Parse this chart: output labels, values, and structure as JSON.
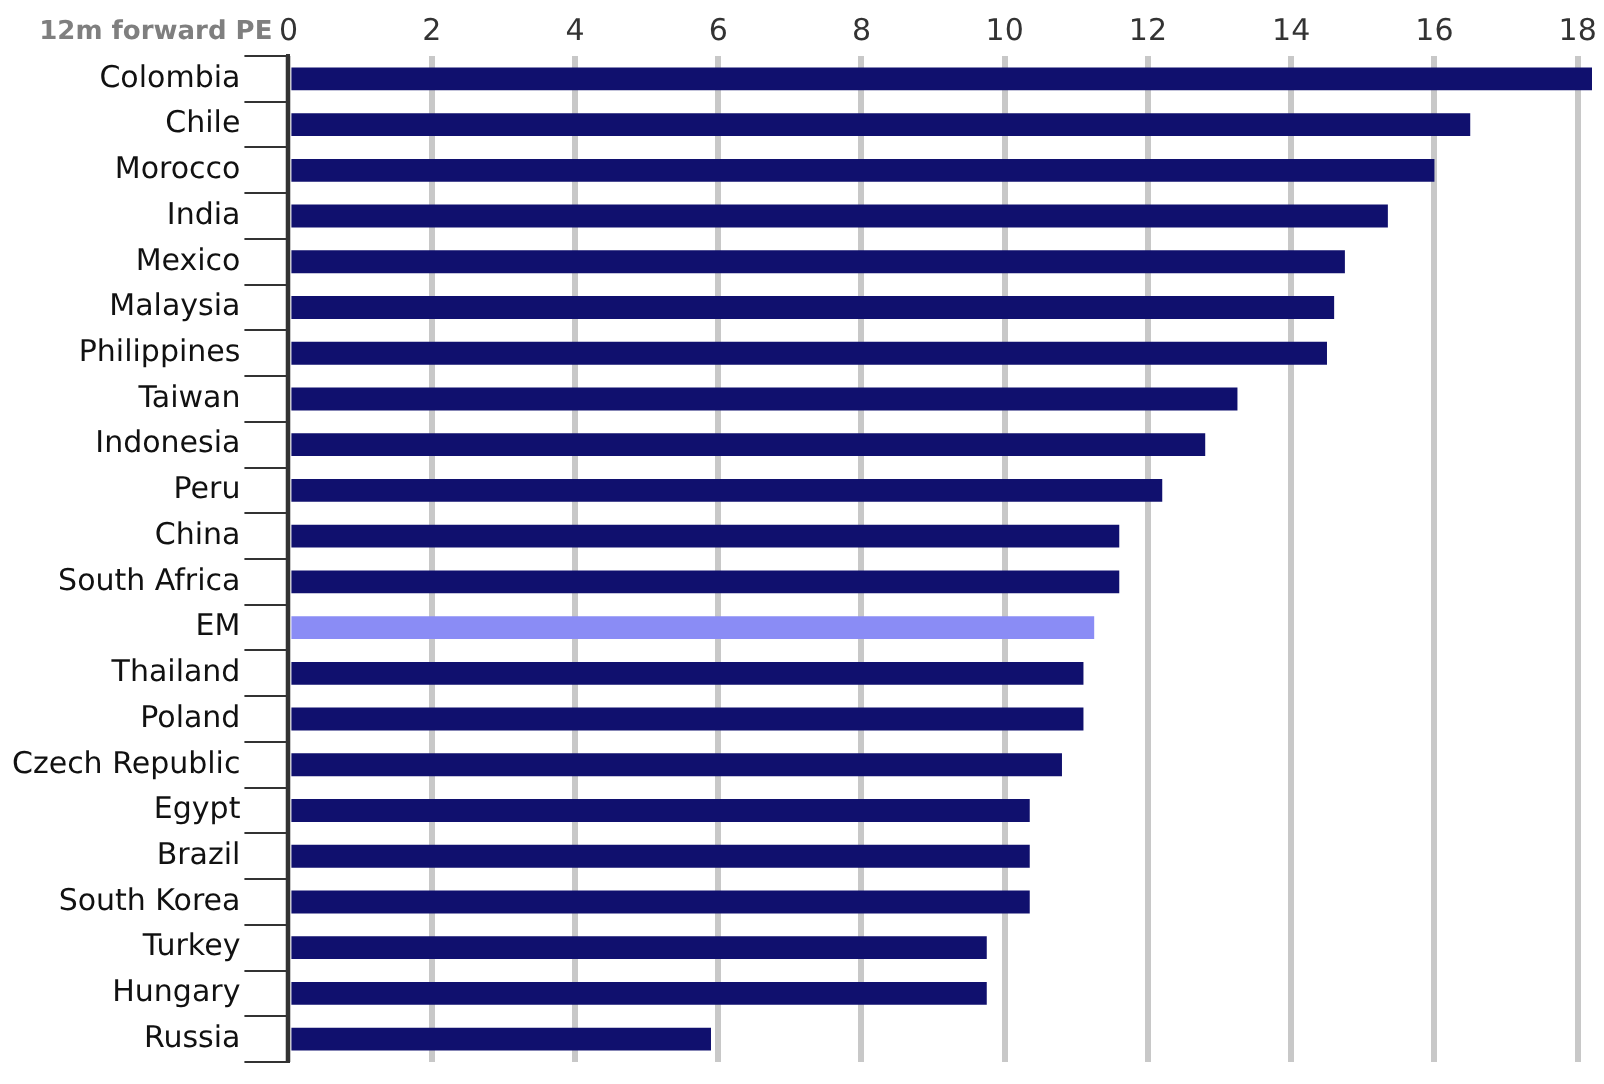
{
  "chart_data": {
    "type": "bar",
    "orientation": "horizontal",
    "xlabel": "12m forward PE",
    "categories": [
      "Colombia",
      "Chile",
      "Morocco",
      "India",
      "Mexico",
      "Malaysia",
      "Philippines",
      "Taiwan",
      "Indonesia",
      "Peru",
      "China",
      "South Africa",
      "EM",
      "Thailand",
      "Poland",
      "Czech Republic",
      "Egypt",
      "Brazil",
      "South Korea",
      "Turkey",
      "Hungary",
      "Russia"
    ],
    "values": [
      18.2,
      16.5,
      16.0,
      15.35,
      14.75,
      14.6,
      14.5,
      13.25,
      12.8,
      12.2,
      11.6,
      11.6,
      11.25,
      11.1,
      11.1,
      10.8,
      10.35,
      10.35,
      10.35,
      9.75,
      9.75,
      5.9
    ],
    "colors": [
      "#10106e",
      "#10106e",
      "#10106e",
      "#10106e",
      "#10106e",
      "#10106e",
      "#10106e",
      "#10106e",
      "#10106e",
      "#10106e",
      "#10106e",
      "#10106e",
      "#8a8cf5",
      "#10106e",
      "#10106e",
      "#10106e",
      "#10106e",
      "#10106e",
      "#10106e",
      "#10106e",
      "#10106e",
      "#10106e"
    ],
    "xlim": [
      0,
      18.2
    ],
    "xticks": [
      0,
      2,
      4,
      6,
      8,
      10,
      12,
      14,
      16,
      18
    ],
    "grid": "x",
    "legend": false
  }
}
